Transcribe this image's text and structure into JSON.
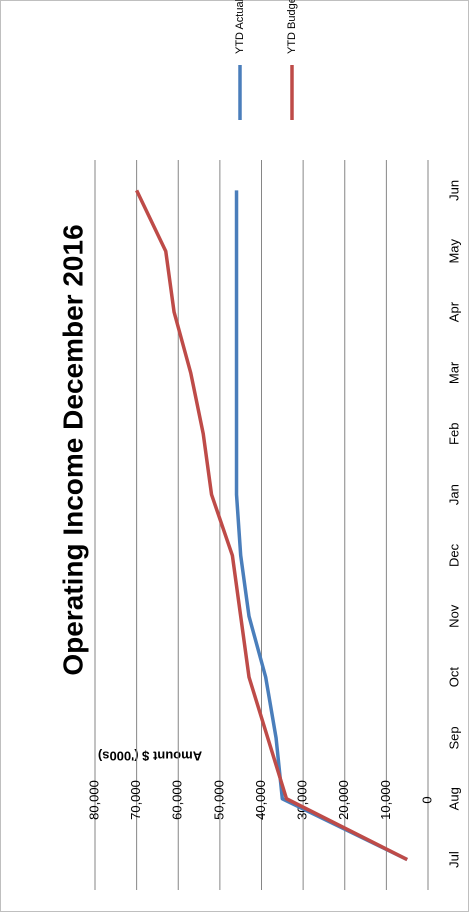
{
  "chart_data": {
    "type": "line",
    "title": "Operating Income December 2016",
    "y_label": "Amount $ ('000s)",
    "categories": [
      "Jul",
      "Aug",
      "Sep",
      "Oct",
      "Nov",
      "Dec",
      "Jan",
      "Feb",
      "Mar",
      "Apr",
      "May",
      "Jun"
    ],
    "series": [
      {
        "name": "YTD Actual",
        "color": "#4a7ebb",
        "values": [
          5000,
          35000,
          36500,
          39000,
          43000,
          45000,
          46000,
          46000,
          46000,
          46000,
          46000,
          46000
        ]
      },
      {
        "name": "YTD Budget",
        "color": "#be4b48",
        "values": [
          5000,
          34000,
          38500,
          43000,
          45000,
          47000,
          52000,
          54000,
          57000,
          61000,
          63000,
          70000
        ]
      }
    ],
    "ylim": [
      0,
      80000
    ],
    "yticks": [
      {
        "value": 0,
        "label": "0"
      },
      {
        "value": 10000,
        "label": "10,000"
      },
      {
        "value": 20000,
        "label": "20,000"
      },
      {
        "value": 30000,
        "label": "30,000"
      },
      {
        "value": 40000,
        "label": "40,000"
      },
      {
        "value": 50000,
        "label": "50,000"
      },
      {
        "value": 60000,
        "label": "60,000"
      },
      {
        "value": 70000,
        "label": "70,000"
      },
      {
        "value": 80000,
        "label": "80,000"
      }
    ],
    "grid": true
  }
}
